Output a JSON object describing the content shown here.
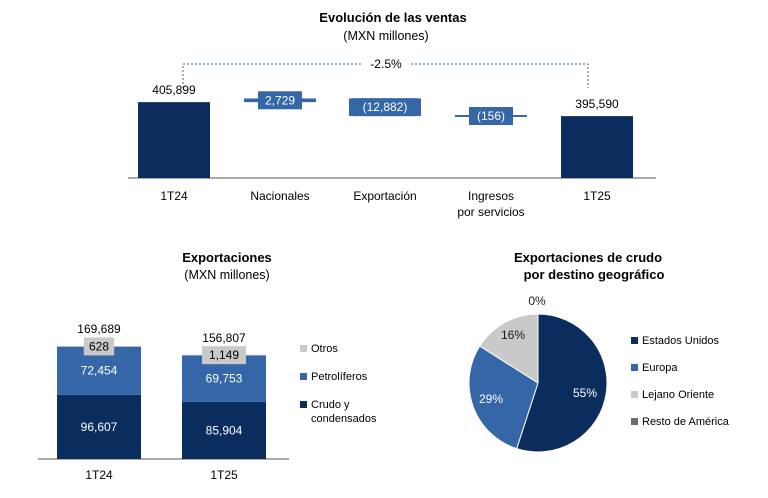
{
  "chart_data": [
    {
      "type": "bar",
      "subtype": "waterfall",
      "title": "Evolución de las ventas",
      "subtitle": "(MXN millones)",
      "categories": [
        "1T24",
        "Nacionales",
        "Exportación",
        "Ingresos por servicios",
        "1T25"
      ],
      "category_lines": [
        [
          "1T24"
        ],
        [
          "Nacionales"
        ],
        [
          "Exportación"
        ],
        [
          "Ingresos",
          "por servicios"
        ],
        [
          "1T25"
        ]
      ],
      "values": [
        405899,
        2729,
        -12882,
        -156,
        395590
      ],
      "value_labels": [
        "405,899",
        "2,729",
        "(12,882)",
        "(156)",
        "395,590"
      ],
      "kinds": [
        "total",
        "delta",
        "delta",
        "delta",
        "total"
      ],
      "change_label": "-2.5%",
      "colors": {
        "total": "#0b2d5e",
        "delta": "#3466a8",
        "line": "#3466a8",
        "axis": "#555555",
        "dashed": "#3466a8"
      }
    },
    {
      "type": "bar",
      "subtype": "stacked",
      "title": "Exportaciones",
      "subtitle": "(MXN millones)",
      "categories": [
        "1T24",
        "1T25"
      ],
      "totals": [
        169689,
        156807
      ],
      "total_labels": [
        "169,689",
        "156,807"
      ],
      "series": [
        {
          "name": "Crudo y condensados",
          "legend_lines": [
            "Crudo y",
            "condensados"
          ],
          "values": [
            96607,
            85904
          ],
          "labels": [
            "96,607",
            "85,904"
          ],
          "color": "#0b2d5e"
        },
        {
          "name": "Petrolíferos",
          "legend_lines": [
            "Petrolíferos"
          ],
          "values": [
            72454,
            69753
          ],
          "labels": [
            "72,454",
            "69,753"
          ],
          "color": "#3466a8"
        },
        {
          "name": "Otros",
          "legend_lines": [
            "Otros"
          ],
          "values": [
            628,
            1149
          ],
          "labels": [
            "628",
            "1,149"
          ],
          "color": "#c9c9c9"
        }
      ],
      "legend_position": "right"
    },
    {
      "type": "pie",
      "title_lines": [
        "Exportaciones de crudo",
        "por destino geográfico"
      ],
      "slices": [
        {
          "name": "Estados Unidos",
          "value": 55,
          "label": "55%",
          "color": "#0b2d5e"
        },
        {
          "name": "Europa",
          "value": 29,
          "label": "29%",
          "color": "#3466a8"
        },
        {
          "name": "Lejano Oriente",
          "value": 16,
          "label": "16%",
          "color": "#c9c9c9"
        },
        {
          "name": "Resto de América",
          "value": 0,
          "label": "0%",
          "color": "#6d6d6d"
        }
      ],
      "legend_position": "right"
    }
  ]
}
